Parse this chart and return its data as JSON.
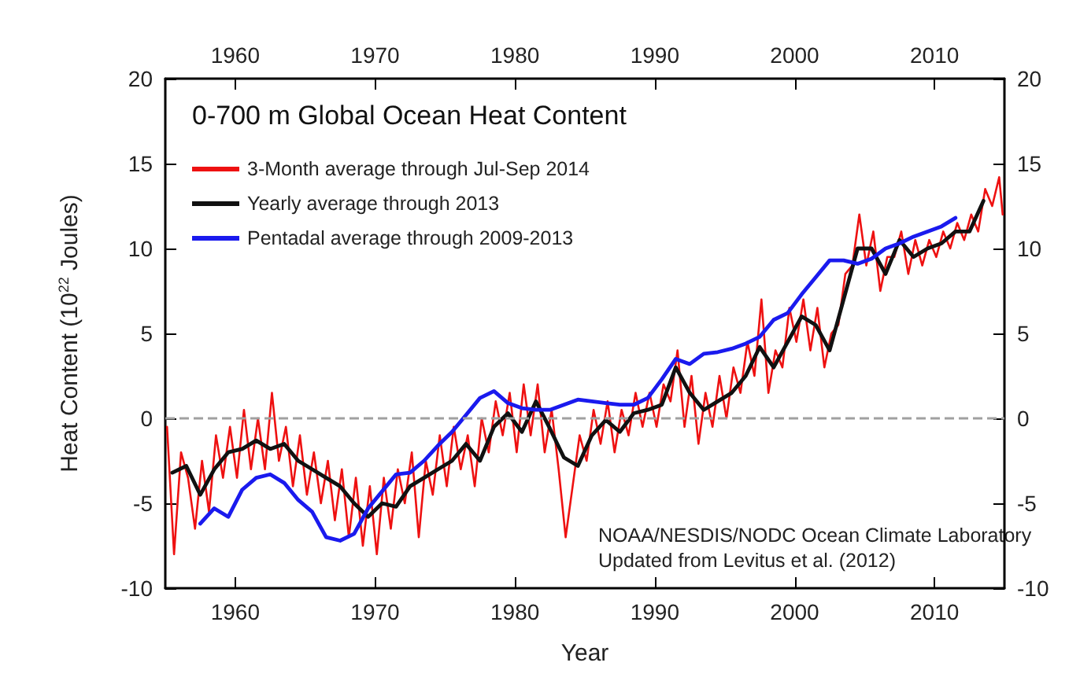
{
  "chart_data": {
    "type": "line",
    "title": "0-700 m Global Ocean Heat Content",
    "xlabel": "Year",
    "ylabel": "Heat Content (10$^{22}$ Joules)",
    "xlim": [
      1955,
      2015
    ],
    "xticks": [
      1960,
      1970,
      1980,
      1990,
      2000,
      2010
    ],
    "x2lim": [
      1955,
      2015
    ],
    "x2ticks": [
      1960,
      1970,
      1980,
      1990,
      2000,
      2010
    ],
    "ylim": [
      -10,
      20
    ],
    "yticks": [
      -10,
      -5,
      0,
      5,
      10,
      15,
      20
    ],
    "y2lim": [
      -10,
      20
    ],
    "y2ticks": [
      -10,
      -5,
      0,
      5,
      10,
      15,
      20
    ],
    "grid": false,
    "legend": "top left",
    "marker": "none",
    "line_style": "solid",
    "ref_lines": [
      {
        "axis": "y",
        "value": 0,
        "color": "#a0a0a0",
        "line_style": "dashed"
      }
    ],
    "annotations": [
      "NOAA/NESDIS/NODC Ocean Climate Laboratory",
      "Updated from Levitus et al. (2012)"
    ],
    "series": [
      {
        "name": "3-Month average through Jul-Sep 2014",
        "color": "#ee1111",
        "x": [
          1955.125,
          1955.625,
          1956.125,
          1956.625,
          1957.125,
          1957.625,
          1958.125,
          1958.625,
          1959.125,
          1959.625,
          1960.125,
          1960.625,
          1961.125,
          1961.625,
          1962.125,
          1962.625,
          1963.125,
          1963.625,
          1964.125,
          1964.625,
          1965.125,
          1965.625,
          1966.125,
          1966.625,
          1967.125,
          1967.625,
          1968.125,
          1968.625,
          1969.125,
          1969.625,
          1970.125,
          1970.625,
          1971.125,
          1971.625,
          1972.125,
          1972.625,
          1973.125,
          1973.625,
          1974.125,
          1974.625,
          1975.125,
          1975.625,
          1976.125,
          1976.625,
          1977.125,
          1977.625,
          1978.125,
          1978.625,
          1979.125,
          1979.625,
          1980.125,
          1980.625,
          1981.125,
          1981.625,
          1982.125,
          1982.625,
          1983.125,
          1983.625,
          1984.125,
          1984.625,
          1985.125,
          1985.625,
          1986.125,
          1986.625,
          1987.125,
          1987.625,
          1988.125,
          1988.625,
          1989.125,
          1989.625,
          1990.125,
          1990.625,
          1991.125,
          1991.625,
          1992.125,
          1992.625,
          1993.125,
          1993.625,
          1994.125,
          1994.625,
          1995.125,
          1995.625,
          1996.125,
          1996.625,
          1997.125,
          1997.625,
          1998.125,
          1998.625,
          1999.125,
          1999.625,
          2000.125,
          2000.625,
          2001.125,
          2001.625,
          2002.125,
          2002.625,
          2003.125,
          2003.625,
          2004.125,
          2004.625,
          2005.125,
          2005.625,
          2006.125,
          2006.625,
          2007.125,
          2007.625,
          2008.125,
          2008.625,
          2009.125,
          2009.625,
          2010.125,
          2010.625,
          2011.125,
          2011.625,
          2012.125,
          2012.625,
          2013.125,
          2013.625,
          2014.125,
          2014.625,
          2014.875
        ],
        "values": [
          -0.5,
          -8,
          -2,
          -3.5,
          -6.5,
          -2.5,
          -5.5,
          -1,
          -3.5,
          -0.5,
          -3.5,
          0.5,
          -3,
          0,
          -3,
          1.5,
          -2.5,
          -0.5,
          -4,
          -1,
          -4.5,
          -2,
          -5,
          -2.5,
          -6,
          -3,
          -7,
          -3.5,
          -7.5,
          -4,
          -8,
          -3.5,
          -6.5,
          -3,
          -5,
          -2,
          -7,
          -2.5,
          -4.5,
          -1,
          -4,
          -0.5,
          -3,
          -1,
          -4,
          0,
          -2,
          1,
          -1,
          1.5,
          -2,
          2,
          -1,
          2,
          -2,
          0.5,
          -3,
          -7,
          -4,
          -1,
          -2.5,
          0.5,
          -1.5,
          1,
          -2,
          0.5,
          -1,
          1.5,
          -0.5,
          1.5,
          -0.5,
          2,
          1,
          4,
          -0.5,
          2.5,
          -1.5,
          1.5,
          -0.5,
          2.5,
          0,
          3,
          1.5,
          4.5,
          2.5,
          7,
          1.5,
          4,
          3,
          6.5,
          4.5,
          7,
          4,
          6.5,
          3,
          5,
          5.5,
          8.5,
          9,
          12,
          9,
          11,
          7.5,
          9.5,
          9.5,
          11,
          8.5,
          10.5,
          9,
          10.5,
          9.5,
          11,
          10,
          11.5,
          10.5,
          12,
          11,
          13.5,
          12.5,
          14.2,
          12
        ]
      },
      {
        "name": "Yearly average through 2013",
        "color": "#111111",
        "x": [
          1955.5,
          1956.5,
          1957.5,
          1958.5,
          1959.5,
          1960.5,
          1961.5,
          1962.5,
          1963.5,
          1964.5,
          1965.5,
          1966.5,
          1967.5,
          1968.5,
          1969.5,
          1970.5,
          1971.5,
          1972.5,
          1973.5,
          1974.5,
          1975.5,
          1976.5,
          1977.5,
          1978.5,
          1979.5,
          1980.5,
          1981.5,
          1982.5,
          1983.5,
          1984.5,
          1985.5,
          1986.5,
          1987.5,
          1988.5,
          1989.5,
          1990.5,
          1991.5,
          1992.5,
          1993.5,
          1994.5,
          1995.5,
          1996.5,
          1997.5,
          1998.5,
          1999.5,
          2000.5,
          2001.5,
          2002.5,
          2003.5,
          2004.5,
          2005.5,
          2006.5,
          2007.5,
          2008.5,
          2009.5,
          2010.5,
          2011.5,
          2012.5,
          2013.5
        ],
        "values": [
          -3.2,
          -2.8,
          -4.5,
          -3,
          -2,
          -1.8,
          -1.3,
          -1.8,
          -1.5,
          -2.5,
          -3,
          -3.5,
          -4,
          -5,
          -5.8,
          -5,
          -5.2,
          -4,
          -3.5,
          -3,
          -2.5,
          -1.5,
          -2.5,
          -0.5,
          0.3,
          -0.8,
          1,
          -0.6,
          -2.3,
          -2.8,
          -1,
          -0.1,
          -0.8,
          0.3,
          0.5,
          0.8,
          3,
          1.5,
          0.5,
          1,
          1.5,
          2.5,
          4.2,
          3,
          4.5,
          6,
          5.5,
          4,
          7,
          10,
          10,
          8.5,
          10.5,
          9.5,
          10,
          10.3,
          11,
          11,
          12.8
        ]
      },
      {
        "name": "Pentadal average through 2009-2013",
        "color": "#1a1aee",
        "x": [
          1957.5,
          1958.5,
          1959.5,
          1960.5,
          1961.5,
          1962.5,
          1963.5,
          1964.5,
          1965.5,
          1966.5,
          1967.5,
          1968.5,
          1969.5,
          1970.5,
          1971.5,
          1972.5,
          1973.5,
          1974.5,
          1975.5,
          1976.5,
          1977.5,
          1978.5,
          1979.5,
          1980.5,
          1981.5,
          1982.5,
          1983.5,
          1984.5,
          1985.5,
          1986.5,
          1987.5,
          1988.5,
          1989.5,
          1990.5,
          1991.5,
          1992.5,
          1993.5,
          1994.5,
          1995.5,
          1996.5,
          1997.5,
          1998.5,
          1999.5,
          2000.5,
          2001.5,
          2002.5,
          2003.5,
          2004.5,
          2005.5,
          2006.5,
          2007.5,
          2008.5,
          2009.5,
          2010.5,
          2011.5
        ],
        "values": [
          -6.2,
          -5.3,
          -5.8,
          -4.2,
          -3.5,
          -3.3,
          -3.8,
          -4.8,
          -5.5,
          -7,
          -7.2,
          -6.8,
          -5.3,
          -4.3,
          -3.3,
          -3.2,
          -2.5,
          -1.6,
          -0.8,
          0.2,
          1.2,
          1.6,
          0.9,
          0.6,
          0.5,
          0.5,
          0.8,
          1.1,
          1,
          0.9,
          0.8,
          0.8,
          1.2,
          2.3,
          3.5,
          3.2,
          3.8,
          3.9,
          4.1,
          4.4,
          4.8,
          5.8,
          6.2,
          7.3,
          8.3,
          9.3,
          9.3,
          9.1,
          9.4,
          10,
          10.3,
          10.7,
          11,
          11.3,
          11.8
        ]
      }
    ]
  }
}
